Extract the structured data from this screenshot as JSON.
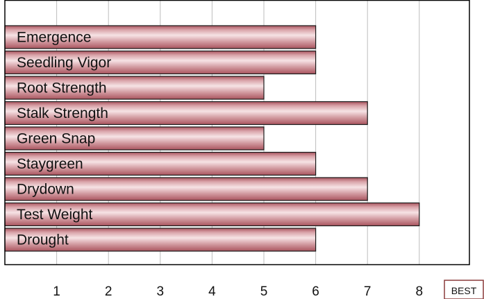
{
  "chart_data": {
    "type": "bar",
    "orientation": "horizontal",
    "categories": [
      "Emergence",
      "Seedling Vigor",
      "Root Strength",
      "Stalk Strength",
      "Green Snap",
      "Staygreen",
      "Drydown",
      "Test Weight",
      "Drought"
    ],
    "values": [
      6,
      6,
      5,
      7,
      5,
      6,
      7,
      8,
      6
    ],
    "xlim": [
      0,
      9
    ],
    "xticks": [
      "1",
      "2",
      "3",
      "4",
      "5",
      "6",
      "7",
      "8"
    ],
    "best_label": "BEST",
    "grid": true,
    "colors": {
      "bar_light": "#f6e3e5",
      "bar_mid": "#c98990",
      "bar_dark": "#a9545e",
      "bar_border": "#1a1a1a",
      "grid": "#bdbdbd",
      "frame": "#000000",
      "best_border": "#8c3b3b"
    }
  }
}
